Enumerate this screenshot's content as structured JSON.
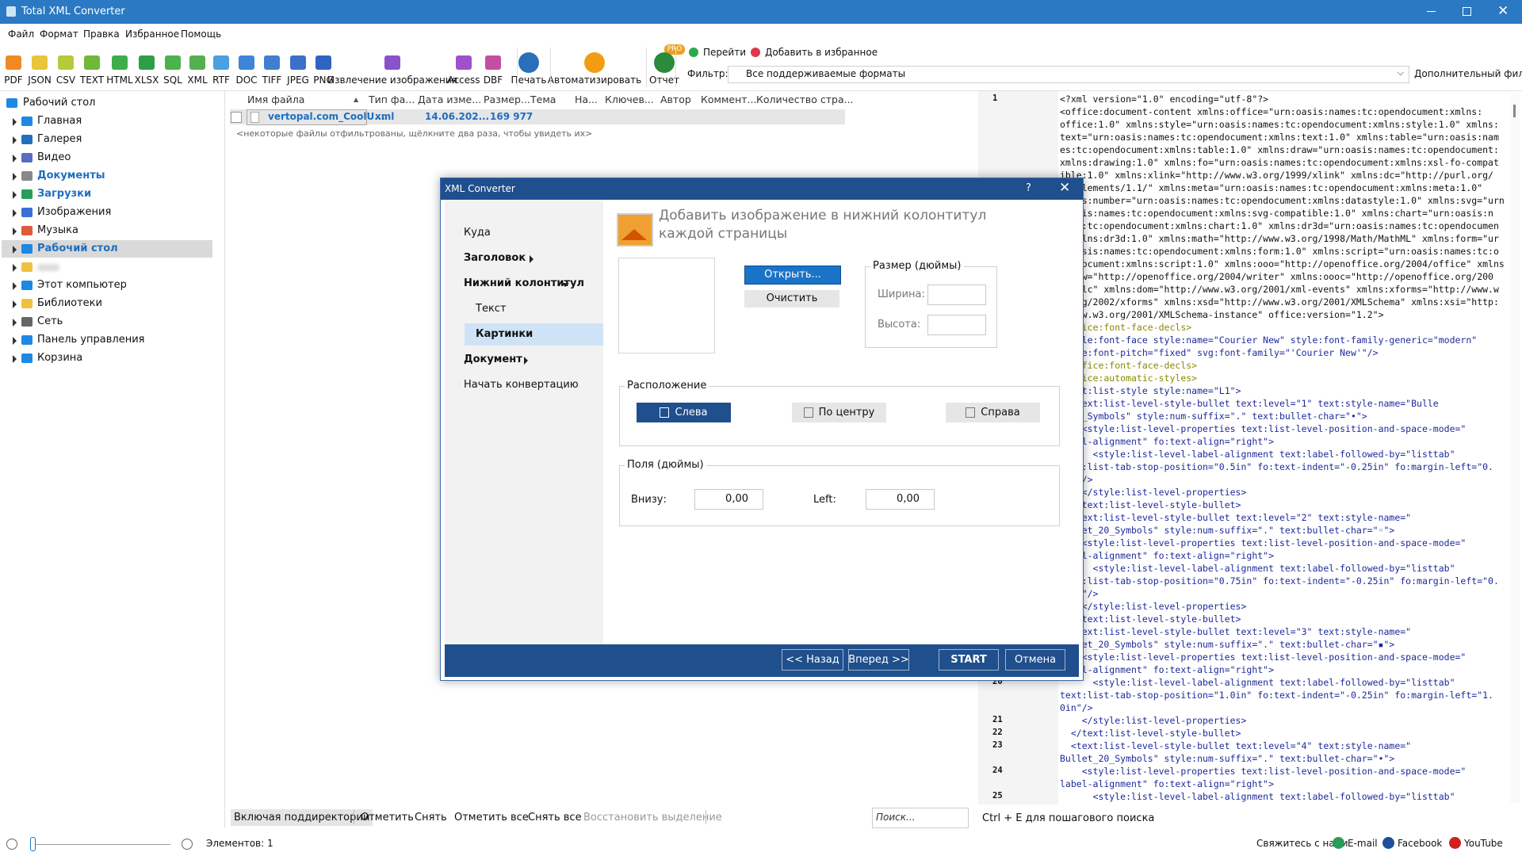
{
  "window": {
    "title": "Total XML Converter"
  },
  "menu": [
    "Файл",
    "Формат",
    "Правка",
    "Избранное",
    "Помощь"
  ],
  "toolbar": [
    "PDF",
    "JSON",
    "CSV",
    "TEXT",
    "HTML",
    "XLSX",
    "SQL",
    "XML",
    "RTF",
    "DOC",
    "TIFF",
    "JPEG",
    "PNG",
    "Извлечение изображения",
    "Access",
    "DBF",
    "Печать",
    "Автоматизировать",
    "Отчет"
  ],
  "pro_badge": "PRO",
  "nav": {
    "goto": "Перейти",
    "favorite": "Добавить в избранное",
    "filter_label": "Фильтр:",
    "filter_value": "Все поддерживаемые форматы",
    "extra_filter": "Дополнительный фильтр"
  },
  "tree": [
    "Рабочий стол",
    "Главная",
    "Галерея",
    "Видео",
    "Документы",
    "Загрузки",
    "Изображения",
    "Музыка",
    "Рабочий стол",
    null,
    "Этот компьютер",
    "Библиотеки",
    "Сеть",
    "Панель управления",
    "Корзина"
  ],
  "file_list": {
    "columns": [
      "Имя файла",
      "Тип фа...",
      "Дата изме...",
      "Размер...",
      "Тема",
      "На...",
      "Ключев...",
      "Автор",
      "Коммент...",
      "Количество стра..."
    ],
    "rows": [
      [
        "vertopal.com_CoolU...",
        "xml",
        "14.06.202...",
        "169 977"
      ]
    ],
    "note": "<некоторые файлы отфильтрованы, щёлкните два раза, чтобы увидеть их>"
  },
  "bottom_bar": {
    "buttons": [
      "Включая поддиректории",
      "Отметить",
      "Снять",
      "Отметить все",
      "Снять все",
      "Восстановить выделение"
    ],
    "search": "Поиск..."
  },
  "status": {
    "items_label": "Элементов:",
    "items_count": 1,
    "hint": "Ctrl + E для пошагового поиска",
    "contact": "Свяжитесь с нами",
    "links": [
      "E-mail",
      "Facebook",
      "YouTube"
    ]
  },
  "code": [
    {
      "num": "1",
      "text": "<?xml version=\"1.0\" encoding=\"utf-8\"?>"
    },
    {
      "text": "<office:document-content xmlns:office=\"urn:oasis:names:tc:opendocument:xmlns:"
    },
    {
      "text": "office:1.0\" xmlns:style=\"urn:oasis:names:tc:opendocument:xmlns:style:1.0\" xmlns:"
    },
    {
      "text": "text=\"urn:oasis:names:tc:opendocument:xmlns:text:1.0\" xmlns:table=\"urn:oasis:nam"
    },
    {
      "text": "es:tc:opendocument:xmlns:table:1.0\" xmlns:draw=\"urn:oasis:names:tc:opendocument:"
    },
    {
      "text": "xmlns:drawing:1.0\" xmlns:fo=\"urn:oasis:names:tc:opendocument:xmlns:xsl-fo-compat"
    },
    {
      "text": "ible:1.0\" xmlns:xlink=\"http://www.w3.org/1999/xlink\" xmlns:dc=\"http://purl.org/"
    },
    {
      "text": "dc/elements/1.1/\" xmlns:meta=\"urn:oasis:names:tc:opendocument:xmlns:meta:1.0\""
    },
    {
      "text": "xmlns:number=\"urn:oasis:names:tc:opendocument:xmlns:datastyle:1.0\" xmlns:svg=\"urn"
    },
    {
      "text": ":oasis:names:tc:opendocument:xmlns:svg-compatible:1.0\" xmlns:chart=\"urn:oasis:n"
    },
    {
      "text": "ames:tc:opendocument:xmlns:chart:1.0\" xmlns:dr3d=\"urn:oasis:names:tc:opendocumen"
    },
    {
      "text": "t:xmlns:dr3d:1.0\" xmlns:math=\"http://www.w3.org/1998/Math/MathML\" xmlns:form=\"ur"
    },
    {
      "text": "n:oasis:names:tc:opendocument:xmlns:form:1.0\" xmlns:script=\"urn:oasis:names:tc:o"
    },
    {
      "text": "pendocument:xmlns:script:1.0\" xmlns:ooo=\"http://openoffice.org/2004/office\" xmlns"
    },
    {
      "text": ":ooow=\"http://openoffice.org/2004/writer\" xmlns:oooc=\"http://openoffice.org/200"
    },
    {
      "text": "4/calc\" xmlns:dom=\"http://www.w3.org/2001/xml-events\" xmlns:xforms=\"http://www.w"
    },
    {
      "text": "3.org/2002/xforms\" xmlns:xsd=\"http://www.w3.org/2001/XMLSchema\" xmlns:xsi=\"http:"
    },
    {
      "text": "//www.w3.org/2001/XMLSchema-instance\" office:version=\"1.2\">"
    },
    {
      "text": "<office:font-face-decls>"
    },
    {
      "text": "<style:font-face style:name=\"Courier New\" style:font-family-generic=\"modern\""
    },
    {
      "text": "style:font-pitch=\"fixed\" svg:font-family=\"'Courier New'\"/>"
    },
    {
      "text": "</office:font-face-decls>"
    },
    {
      "text": "<office:automatic-styles>"
    },
    {
      "text": "<text:list-style style:name=\"L1\">"
    },
    {
      "text": "  <text:list-level-style-bullet text:level=\"1\" text:style-name=\"Bulle"
    },
    {
      "text": "t_20_Symbols\" style:num-suffix=\".\" text:bullet-char=\"•\">"
    },
    {
      "text": "    <style:list-level-properties text:list-level-position-and-space-mode=\""
    },
    {
      "text": "label-alignment\" fo:text-align=\"right\">"
    },
    {
      "text": "      <style:list-level-label-alignment text:label-followed-by=\"listtab\""
    },
    {
      "text": "text:list-tab-stop-position=\"0.5in\" fo:text-indent=\"-0.25in\" fo:margin-left=\"0."
    },
    {
      "text": "5in\"/>"
    },
    {
      "text": "    </style:list-level-properties>"
    },
    {
      "text": "  </text:list-level-style-bullet>"
    },
    {
      "text": "  <text:list-level-style-bullet text:level=\"2\" text:style-name=\""
    },
    {
      "text": "Bullet_20_Symbols\" style:num-suffix=\".\" text:bullet-char=\"◦\">"
    },
    {
      "text": "    <style:list-level-properties text:list-level-position-and-space-mode=\""
    },
    {
      "text": "label-alignment\" fo:text-align=\"right\">"
    },
    {
      "text": "      <style:list-level-label-alignment text:label-followed-by=\"listtab\""
    },
    {
      "text": "text:list-tab-stop-position=\"0.75in\" fo:text-indent=\"-0.25in\" fo:margin-left=\"0."
    },
    {
      "text": "75in\"/>"
    },
    {
      "text": "    </style:list-level-properties>"
    },
    {
      "text": "  </text:list-level-style-bullet>"
    },
    {
      "text": "  <text:list-level-style-bullet text:level=\"3\" text:style-name=\""
    },
    {
      "text": "Bullet_20_Symbols\" style:num-suffix=\".\" text:bullet-char=\"▪\">"
    },
    {
      "text": "    <style:list-level-properties text:list-level-position-and-space-mode=\""
    },
    {
      "text": "label-alignment\" fo:text-align=\"right\">"
    },
    {
      "num": "20",
      "text": "      <style:list-level-label-alignment text:label-followed-by=\"listtab\""
    },
    {
      "text": "text:list-tab-stop-position=\"1.0in\" fo:text-indent=\"-0.25in\" fo:margin-left=\"1."
    },
    {
      "text": "0in\"/>"
    },
    {
      "num": "21",
      "text": "    </style:list-level-properties>"
    },
    {
      "num": "22",
      "text": "  </text:list-level-style-bullet>"
    },
    {
      "num": "23",
      "text": "  <text:list-level-style-bullet text:level=\"4\" text:style-name=\""
    },
    {
      "text": "Bullet_20_Symbols\" style:num-suffix=\".\" text:bullet-char=\"•\">"
    },
    {
      "num": "24",
      "text": "    <style:list-level-properties text:list-level-position-and-space-mode=\""
    },
    {
      "text": "label-alignment\" fo:text-align=\"right\">"
    },
    {
      "num": "25",
      "text": "      <style:list-level-label-alignment text:label-followed-by=\"listtab\""
    }
  ],
  "dialog": {
    "title": "XML Converter",
    "help": "?",
    "nav": [
      "Куда",
      "Заголовок",
      "Нижний колонтитул",
      "Текст",
      "Картинки",
      "Документ",
      "Начать конвертацию"
    ],
    "heading": "Добавить изображение в нижний колонтитул каждой страницы",
    "open": "Открыть...",
    "clear": "Очистить",
    "size_group": "Размер (дюймы)",
    "width_label": "Ширина:",
    "height_label": "Высота:",
    "position_group": "Расположение",
    "positions": [
      "Слева",
      "По центру",
      "Справа"
    ],
    "margins_group": "Поля (дюймы)",
    "bottom_label": "Внизу:",
    "bottom_value": "0,00",
    "left_label": "Left:",
    "left_value": "0,00",
    "buttons": [
      "<< Назад",
      "Вперед >>",
      "START",
      "Отмена"
    ]
  }
}
